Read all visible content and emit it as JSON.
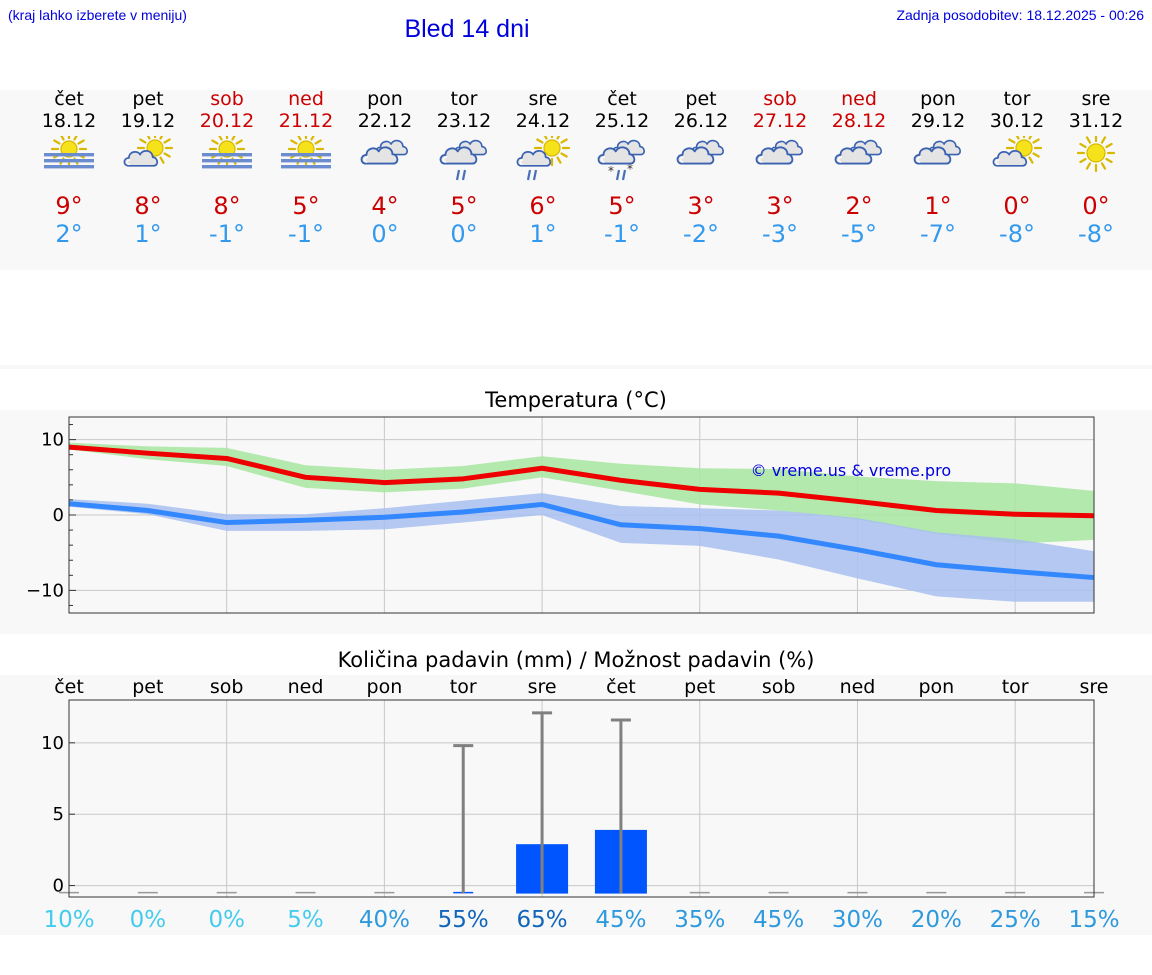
{
  "header": {
    "menu_hint": "(kraj lahko izberete v meniju)",
    "title": "Bled 14 dni",
    "last_update": "Zadnja posodobitev: 18.12.2025 - 00:26"
  },
  "colors": {
    "max": "#ee0000",
    "min": "#3388ff",
    "max_band": "#a8e6a0",
    "min_band": "#a8c0f0",
    "precip_bar": "#0055ff",
    "whisker": "#808080",
    "link": "#0000dd"
  },
  "days": [
    {
      "name": "čet",
      "date": "18.12",
      "weekend": false,
      "icon": "sun-fog-icon",
      "max": "9°",
      "min": "2°"
    },
    {
      "name": "pet",
      "date": "19.12",
      "weekend": false,
      "icon": "sun-cloud-icon",
      "max": "8°",
      "min": "1°"
    },
    {
      "name": "sob",
      "date": "20.12",
      "weekend": true,
      "icon": "sun-fog-icon",
      "max": "8°",
      "min": "-1°"
    },
    {
      "name": "ned",
      "date": "21.12",
      "weekend": true,
      "icon": "sun-fog-icon",
      "max": "5°",
      "min": "-1°"
    },
    {
      "name": "pon",
      "date": "22.12",
      "weekend": false,
      "icon": "cloudy-icon",
      "max": "4°",
      "min": "0°"
    },
    {
      "name": "tor",
      "date": "23.12",
      "weekend": false,
      "icon": "rain-icon",
      "max": "5°",
      "min": "0°"
    },
    {
      "name": "sre",
      "date": "24.12",
      "weekend": false,
      "icon": "sun-rain-icon",
      "max": "6°",
      "min": "1°"
    },
    {
      "name": "čet",
      "date": "25.12",
      "weekend": false,
      "icon": "sleet-icon",
      "max": "5°",
      "min": "-1°"
    },
    {
      "name": "pet",
      "date": "26.12",
      "weekend": false,
      "icon": "cloudy-icon",
      "max": "3°",
      "min": "-2°"
    },
    {
      "name": "sob",
      "date": "27.12",
      "weekend": true,
      "icon": "cloudy-icon",
      "max": "3°",
      "min": "-3°"
    },
    {
      "name": "ned",
      "date": "28.12",
      "weekend": true,
      "icon": "cloudy-icon",
      "max": "2°",
      "min": "-5°"
    },
    {
      "name": "pon",
      "date": "29.12",
      "weekend": false,
      "icon": "cloudy-icon",
      "max": "1°",
      "min": "-7°"
    },
    {
      "name": "tor",
      "date": "30.12",
      "weekend": false,
      "icon": "sun-cloud-icon",
      "max": "0°",
      "min": "-8°"
    },
    {
      "name": "sre",
      "date": "31.12",
      "weekend": false,
      "icon": "sun-icon",
      "max": "0°",
      "min": "-8°"
    }
  ],
  "chart_data": [
    {
      "type": "line",
      "title": "Temperatura (°C)",
      "watermark": "© vreme.us & vreme.pro",
      "ylim": [
        -13,
        13
      ],
      "yticks": [
        10,
        0,
        -10
      ],
      "x": [
        0,
        1,
        2,
        3,
        4,
        5,
        6,
        7,
        8,
        9,
        10,
        11,
        12,
        13
      ],
      "series": [
        {
          "name": "max",
          "values": [
            9,
            8.2,
            7.5,
            5,
            4.3,
            4.8,
            6.2,
            4.6,
            3.4,
            2.9,
            1.8,
            0.6,
            0.1,
            -0.1
          ],
          "band_low": [
            8.7,
            7.4,
            6.5,
            3.6,
            3,
            3.5,
            5,
            3.2,
            1.4,
            0.6,
            -0.6,
            -2.5,
            -3.8,
            -3.3
          ],
          "band_high": [
            9.6,
            9.1,
            8.9,
            6.6,
            6,
            6.5,
            7.8,
            6.8,
            6.2,
            6.1,
            5.1,
            4.5,
            4.2,
            3.2
          ]
        },
        {
          "name": "min",
          "values": [
            1.5,
            0.6,
            -1,
            -0.7,
            -0.3,
            0.4,
            1.4,
            -1.3,
            -1.8,
            -2.8,
            -4.6,
            -6.6,
            -7.5,
            -8.3
          ],
          "band_low": [
            1.1,
            0.1,
            -2.1,
            -2.1,
            -1.9,
            -1,
            0,
            -3.7,
            -4.1,
            -5.9,
            -8.4,
            -10.8,
            -11.5,
            -11.5
          ],
          "band_high": [
            2.1,
            1.5,
            0.1,
            0.1,
            0.9,
            1.9,
            2.9,
            1.2,
            0.9,
            0.6,
            -0.4,
            -2.3,
            -3.2,
            -4.8
          ]
        }
      ]
    },
    {
      "type": "bar",
      "title": "Količina padavin (mm) / Možnost padavin (%)",
      "categories": [
        "čet",
        "pet",
        "sob",
        "ned",
        "pon",
        "tor",
        "sre",
        "čet",
        "pet",
        "sob",
        "ned",
        "pon",
        "tor",
        "sre"
      ],
      "ylim": [
        -0.8,
        13
      ],
      "yticks": [
        10,
        5,
        0
      ],
      "values": [
        0,
        0,
        0,
        0,
        0,
        0.1,
        2.9,
        3.9,
        0,
        0,
        0,
        0,
        0,
        0
      ],
      "max_values": [
        null,
        null,
        null,
        null,
        null,
        9.8,
        12.1,
        11.6,
        null,
        null,
        null,
        null,
        null,
        null
      ],
      "probability": [
        "10%",
        "0%",
        "0%",
        "5%",
        "40%",
        "55%",
        "65%",
        "45%",
        "35%",
        "45%",
        "30%",
        "20%",
        "25%",
        "15%"
      ],
      "probability_colors": [
        "#44ccee",
        "#44ccee",
        "#44ccee",
        "#44ccee",
        "#2e99dd",
        "#1166bb",
        "#1166bb",
        "#2e99dd",
        "#2e99dd",
        "#2e99dd",
        "#2e99dd",
        "#2e99dd",
        "#2e99dd",
        "#2e99dd"
      ]
    }
  ]
}
